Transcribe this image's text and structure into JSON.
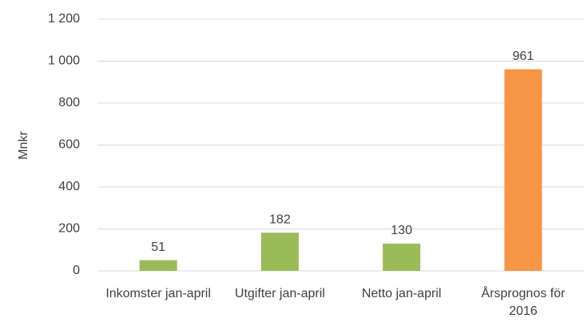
{
  "chart_data": {
    "type": "bar",
    "y_label": "Mnkr",
    "categories": [
      "Inkomster jan-april",
      "Utgifter jan-april",
      "Netto jan-april",
      "Årsprognos för 2016"
    ],
    "values": [
      51,
      182,
      130,
      961
    ],
    "colors": [
      "#9bbb59",
      "#9bbb59",
      "#9bbb59",
      "#f79646"
    ],
    "ylim": [
      0,
      1200
    ],
    "yticks": [
      0,
      200,
      400,
      600,
      800,
      {
        "value": 1000,
        "label": "1 000"
      },
      {
        "value": 1200,
        "label": "1 200"
      }
    ],
    "grid": true
  }
}
